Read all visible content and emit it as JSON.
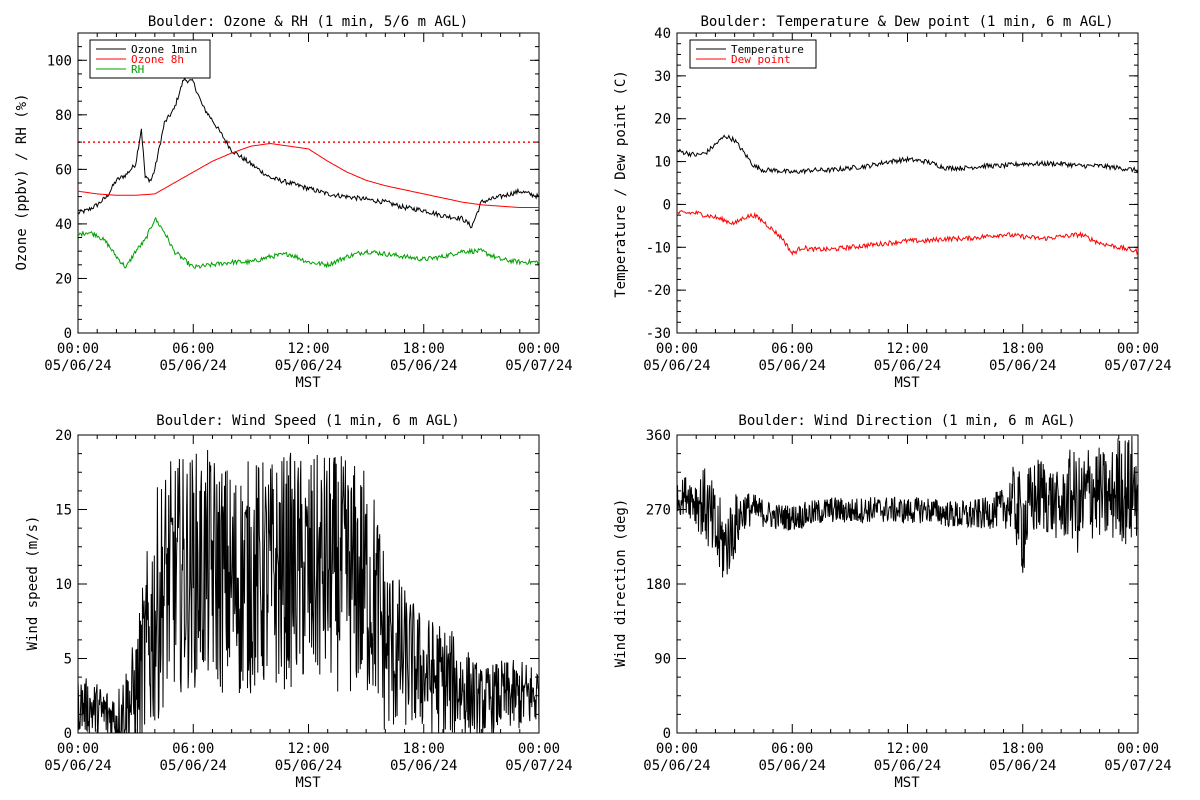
{
  "x_axis": {
    "tick_times": [
      "00:00",
      "06:00",
      "12:00",
      "18:00",
      "00:00"
    ],
    "tick_dates": [
      "05/06/24",
      "05/06/24",
      "05/06/24",
      "05/06/24",
      "05/07/24"
    ],
    "label": "MST",
    "range_hours": [
      0,
      24
    ]
  },
  "panels": {
    "ozone": {
      "title": "Boulder: Ozone & RH (1 min, 5/6 m AGL)",
      "ylabel": "Ozone (ppbv) / RH (%)"
    },
    "temp": {
      "title": "Boulder: Temperature & Dew point (1 min, 6 m AGL)",
      "ylabel": "Temperature / Dew point (C)"
    },
    "wspd": {
      "title": "Boulder: Wind Speed (1 min, 6 m AGL)",
      "ylabel": "Wind speed (m/s)"
    },
    "wdir": {
      "title": "Boulder: Wind Direction (1 min, 6 m AGL)",
      "ylabel": "Wind direction (deg)"
    }
  },
  "chart_data": [
    {
      "type": "line",
      "title": "Boulder: Ozone & RH (1 min, 5/6 m AGL)",
      "xlabel": "MST",
      "ylabel": "Ozone (ppbv) / RH (%)",
      "ylim": [
        0,
        110
      ],
      "yticks": [
        0,
        20,
        40,
        60,
        80,
        100
      ],
      "legend": "top-left",
      "reference_line": {
        "y": 70,
        "color": "#ff0000",
        "style": "dotted"
      },
      "series": [
        {
          "name": "Ozone 1min",
          "color": "#000000",
          "x": [
            0,
            0.5,
            1,
            1.5,
            2,
            2.5,
            3,
            3.3,
            3.5,
            3.8,
            4,
            4.5,
            5,
            5.5,
            6,
            6.5,
            7,
            8,
            9,
            10,
            11,
            12,
            13,
            14,
            15,
            16,
            17,
            18,
            19,
            20,
            20.5,
            21,
            22,
            23,
            24
          ],
          "y": [
            44,
            45,
            47,
            50,
            56,
            58,
            62,
            75,
            57,
            56,
            60,
            77,
            82,
            93,
            92,
            83,
            78,
            67,
            62,
            57,
            55,
            53,
            51,
            50,
            49,
            48,
            46,
            45,
            43,
            42,
            39,
            48,
            50,
            52,
            50
          ]
        },
        {
          "name": "Ozone 8h",
          "color": "#ff0000",
          "x": [
            0,
            1,
            2,
            3,
            4,
            5,
            6,
            7,
            8,
            9,
            10,
            11,
            12,
            13,
            14,
            15,
            16,
            17,
            18,
            19,
            20,
            21,
            22,
            23,
            24
          ],
          "y": [
            52,
            51,
            50.5,
            50.5,
            51,
            55,
            59,
            63,
            66,
            68.5,
            69.5,
            68.5,
            67.5,
            63,
            59,
            56,
            54,
            52.5,
            51,
            49.5,
            48,
            47,
            46.5,
            46,
            46
          ]
        },
        {
          "name": "RH",
          "color": "#00a000",
          "x": [
            0,
            0.5,
            1,
            1.5,
            2,
            2.5,
            3,
            3.5,
            4,
            4.5,
            5,
            5.5,
            6,
            7,
            8,
            9,
            10,
            11,
            12,
            13,
            14,
            15,
            16,
            17,
            18,
            19,
            20,
            21,
            22,
            23,
            24
          ],
          "y": [
            36,
            37,
            36,
            33,
            28,
            24,
            30,
            34,
            42,
            37,
            30,
            27,
            24,
            25,
            26,
            26,
            28,
            29,
            26,
            25,
            28,
            30,
            29,
            28,
            27,
            28,
            30,
            30,
            27,
            26,
            26
          ]
        }
      ]
    },
    {
      "type": "line",
      "title": "Boulder: Temperature & Dew point (1 min, 6 m AGL)",
      "xlabel": "MST",
      "ylabel": "Temperature / Dew point (C)",
      "ylim": [
        -30,
        40
      ],
      "yticks": [
        -30,
        -20,
        -10,
        0,
        10,
        20,
        30,
        40
      ],
      "legend": "top-left",
      "series": [
        {
          "name": "Temperature",
          "color": "#000000",
          "x": [
            0,
            0.5,
            1,
            1.5,
            2,
            2.5,
            3,
            3.5,
            4,
            4.5,
            5,
            6,
            7,
            8,
            9,
            10,
            11,
            12,
            13,
            14,
            15,
            16,
            17,
            18,
            19,
            20,
            21,
            22,
            23,
            24
          ],
          "y": [
            12.5,
            12,
            11.5,
            12,
            14,
            16,
            15,
            12,
            9,
            8,
            8,
            7.5,
            8,
            8,
            8.5,
            9,
            10,
            10.5,
            10,
            8.5,
            8.5,
            9,
            9,
            9.5,
            9.5,
            9.5,
            9,
            9,
            8.5,
            8
          ]
        },
        {
          "name": "Dew point",
          "color": "#ff0000",
          "x": [
            0,
            1,
            2,
            3,
            3.5,
            4,
            4.5,
            5,
            5.5,
            6,
            6.5,
            7,
            8,
            9,
            10,
            11,
            12,
            13,
            14,
            15,
            16,
            17,
            18,
            19,
            20,
            21,
            22,
            23,
            24
          ],
          "y": [
            -2,
            -2,
            -3,
            -4.5,
            -3,
            -2.5,
            -4,
            -6,
            -8,
            -11.5,
            -10,
            -10.5,
            -10.5,
            -10,
            -9.5,
            -9,
            -8.5,
            -8.5,
            -8,
            -8,
            -7.5,
            -7,
            -7.5,
            -8,
            -7.5,
            -7,
            -9,
            -10,
            -11
          ]
        }
      ]
    },
    {
      "type": "line",
      "title": "Boulder: Wind Speed (1 min, 6 m AGL)",
      "xlabel": "MST",
      "ylabel": "Wind speed (m/s)",
      "ylim": [
        0,
        20
      ],
      "yticks": [
        0,
        5,
        10,
        15,
        20
      ],
      "series": [
        {
          "color": "#000000",
          "x": [
            0,
            1,
            2,
            3,
            3.5,
            4,
            4.5,
            5,
            6,
            7,
            8,
            9,
            10,
            11,
            12,
            13,
            14,
            15,
            15.5,
            16,
            17,
            18,
            19,
            20,
            21,
            22,
            23,
            24
          ],
          "y": [
            2,
            1.5,
            1,
            2.5,
            5,
            8,
            10,
            10.5,
            11,
            11,
            10,
            10.5,
            10.5,
            11,
            10.5,
            11,
            10.5,
            10,
            9,
            6,
            5,
            4,
            3.5,
            3,
            2,
            2.5,
            2.5,
            2.5
          ],
          "spread": [
            1.2,
            1.2,
            1.2,
            2.5,
            4,
            5,
            5,
            5,
            5,
            5,
            5,
            5,
            5,
            5,
            5,
            5,
            5,
            5,
            4.5,
            4,
            3,
            2.5,
            2.5,
            2,
            1.5,
            1.5,
            1.5,
            1.5
          ]
        }
      ]
    },
    {
      "type": "line",
      "title": "Boulder: Wind Direction (1 min, 6 m AGL)",
      "xlabel": "MST",
      "ylabel": "Wind direction (deg)",
      "ylim": [
        0,
        360
      ],
      "yticks": [
        0,
        90,
        180,
        270,
        360
      ],
      "series": [
        {
          "color": "#000000",
          "x": [
            0,
            0.5,
            1,
            1.5,
            2,
            2.5,
            3,
            3.5,
            4,
            5,
            6,
            7,
            8,
            9,
            10,
            11,
            12,
            13,
            14,
            15,
            16,
            17,
            17.5,
            18,
            18.5,
            19,
            20,
            20.5,
            21,
            21.5,
            22,
            22.5,
            23,
            23.5,
            24
          ],
          "y": [
            280,
            290,
            280,
            275,
            240,
            225,
            250,
            270,
            270,
            262,
            260,
            265,
            270,
            268,
            270,
            270,
            268,
            270,
            265,
            262,
            265,
            272,
            282,
            250,
            280,
            290,
            270,
            290,
            270,
            295,
            290,
            280,
            300,
            290,
            300
          ],
          "spread": [
            12,
            15,
            20,
            30,
            35,
            30,
            25,
            15,
            12,
            10,
            10,
            10,
            10,
            10,
            10,
            10,
            10,
            10,
            10,
            12,
            12,
            15,
            25,
            40,
            30,
            30,
            25,
            35,
            40,
            40,
            35,
            35,
            40,
            45,
            40
          ]
        }
      ]
    }
  ]
}
